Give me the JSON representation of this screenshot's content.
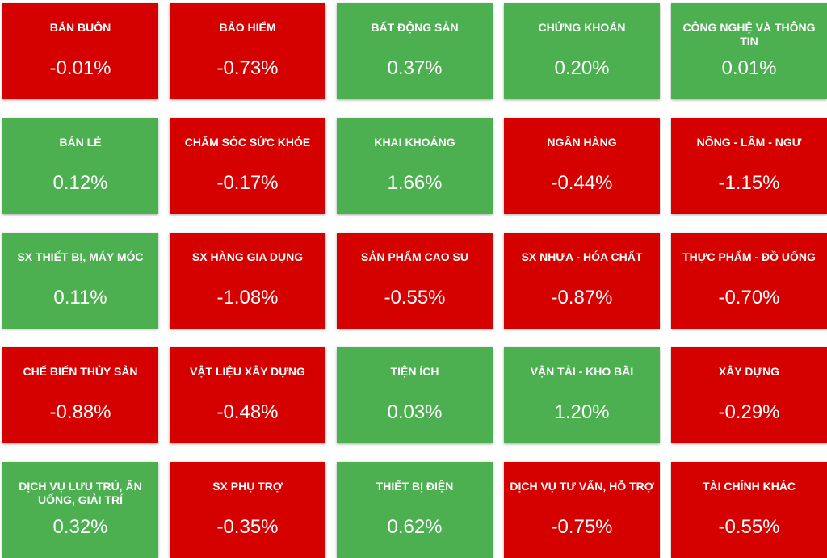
{
  "colors": {
    "positive": "#4caf50",
    "negative": "#d50000",
    "text": "#ffffff"
  },
  "sectors": [
    {
      "label": "BÁN BUÔN",
      "value": "-0.01%",
      "trend": "down"
    },
    {
      "label": "BẢO HIỂM",
      "value": "-0.73%",
      "trend": "down"
    },
    {
      "label": "BẤT ĐỘNG SẢN",
      "value": "0.37%",
      "trend": "up"
    },
    {
      "label": "CHỨNG KHOÁN",
      "value": "0.20%",
      "trend": "up"
    },
    {
      "label": "CÔNG NGHỆ VÀ THÔNG TIN",
      "value": "0.01%",
      "trend": "up"
    },
    {
      "label": "BÁN LẺ",
      "value": "0.12%",
      "trend": "up"
    },
    {
      "label": "CHĂM SÓC SỨC KHỎE",
      "value": "-0.17%",
      "trend": "down"
    },
    {
      "label": "KHAI KHOÁNG",
      "value": "1.66%",
      "trend": "up"
    },
    {
      "label": "NGÂN HÀNG",
      "value": "-0.44%",
      "trend": "down"
    },
    {
      "label": "NÔNG - LÂM - NGƯ",
      "value": "-1.15%",
      "trend": "down"
    },
    {
      "label": "SX THIẾT BỊ, MÁY MÓC",
      "value": "0.11%",
      "trend": "up"
    },
    {
      "label": "SX HÀNG GIA DỤNG",
      "value": "-1.08%",
      "trend": "down"
    },
    {
      "label": "SẢN PHẨM CAO SU",
      "value": "-0.55%",
      "trend": "down"
    },
    {
      "label": "SX NHỰA - HÓA CHẤT",
      "value": "-0.87%",
      "trend": "down"
    },
    {
      "label": "THỰC PHẨM - ĐỒ UỐNG",
      "value": "-0.70%",
      "trend": "down"
    },
    {
      "label": "CHẾ BIẾN THỦY SẢN",
      "value": "-0.88%",
      "trend": "down"
    },
    {
      "label": "VẬT LIỆU XÂY DỰNG",
      "value": "-0.48%",
      "trend": "down"
    },
    {
      "label": "TIỆN ÍCH",
      "value": "0.03%",
      "trend": "up"
    },
    {
      "label": "VẬN TẢI - KHO BÃI",
      "value": "1.20%",
      "trend": "up"
    },
    {
      "label": "XÂY DỰNG",
      "value": "-0.29%",
      "trend": "down"
    },
    {
      "label": "DỊCH VỤ LƯU TRÚ, ĂN UỐNG, GIẢI TRÍ",
      "value": "0.32%",
      "trend": "up"
    },
    {
      "label": "SX PHỤ TRỢ",
      "value": "-0.35%",
      "trend": "down"
    },
    {
      "label": "THIẾT BỊ ĐIỆN",
      "value": "0.62%",
      "trend": "up"
    },
    {
      "label": "DỊCH VỤ TƯ VẤN, HỖ TRỢ",
      "value": "-0.75%",
      "trend": "down"
    },
    {
      "label": "TÀI CHÍNH KHÁC",
      "value": "-0.55%",
      "trend": "down"
    }
  ]
}
